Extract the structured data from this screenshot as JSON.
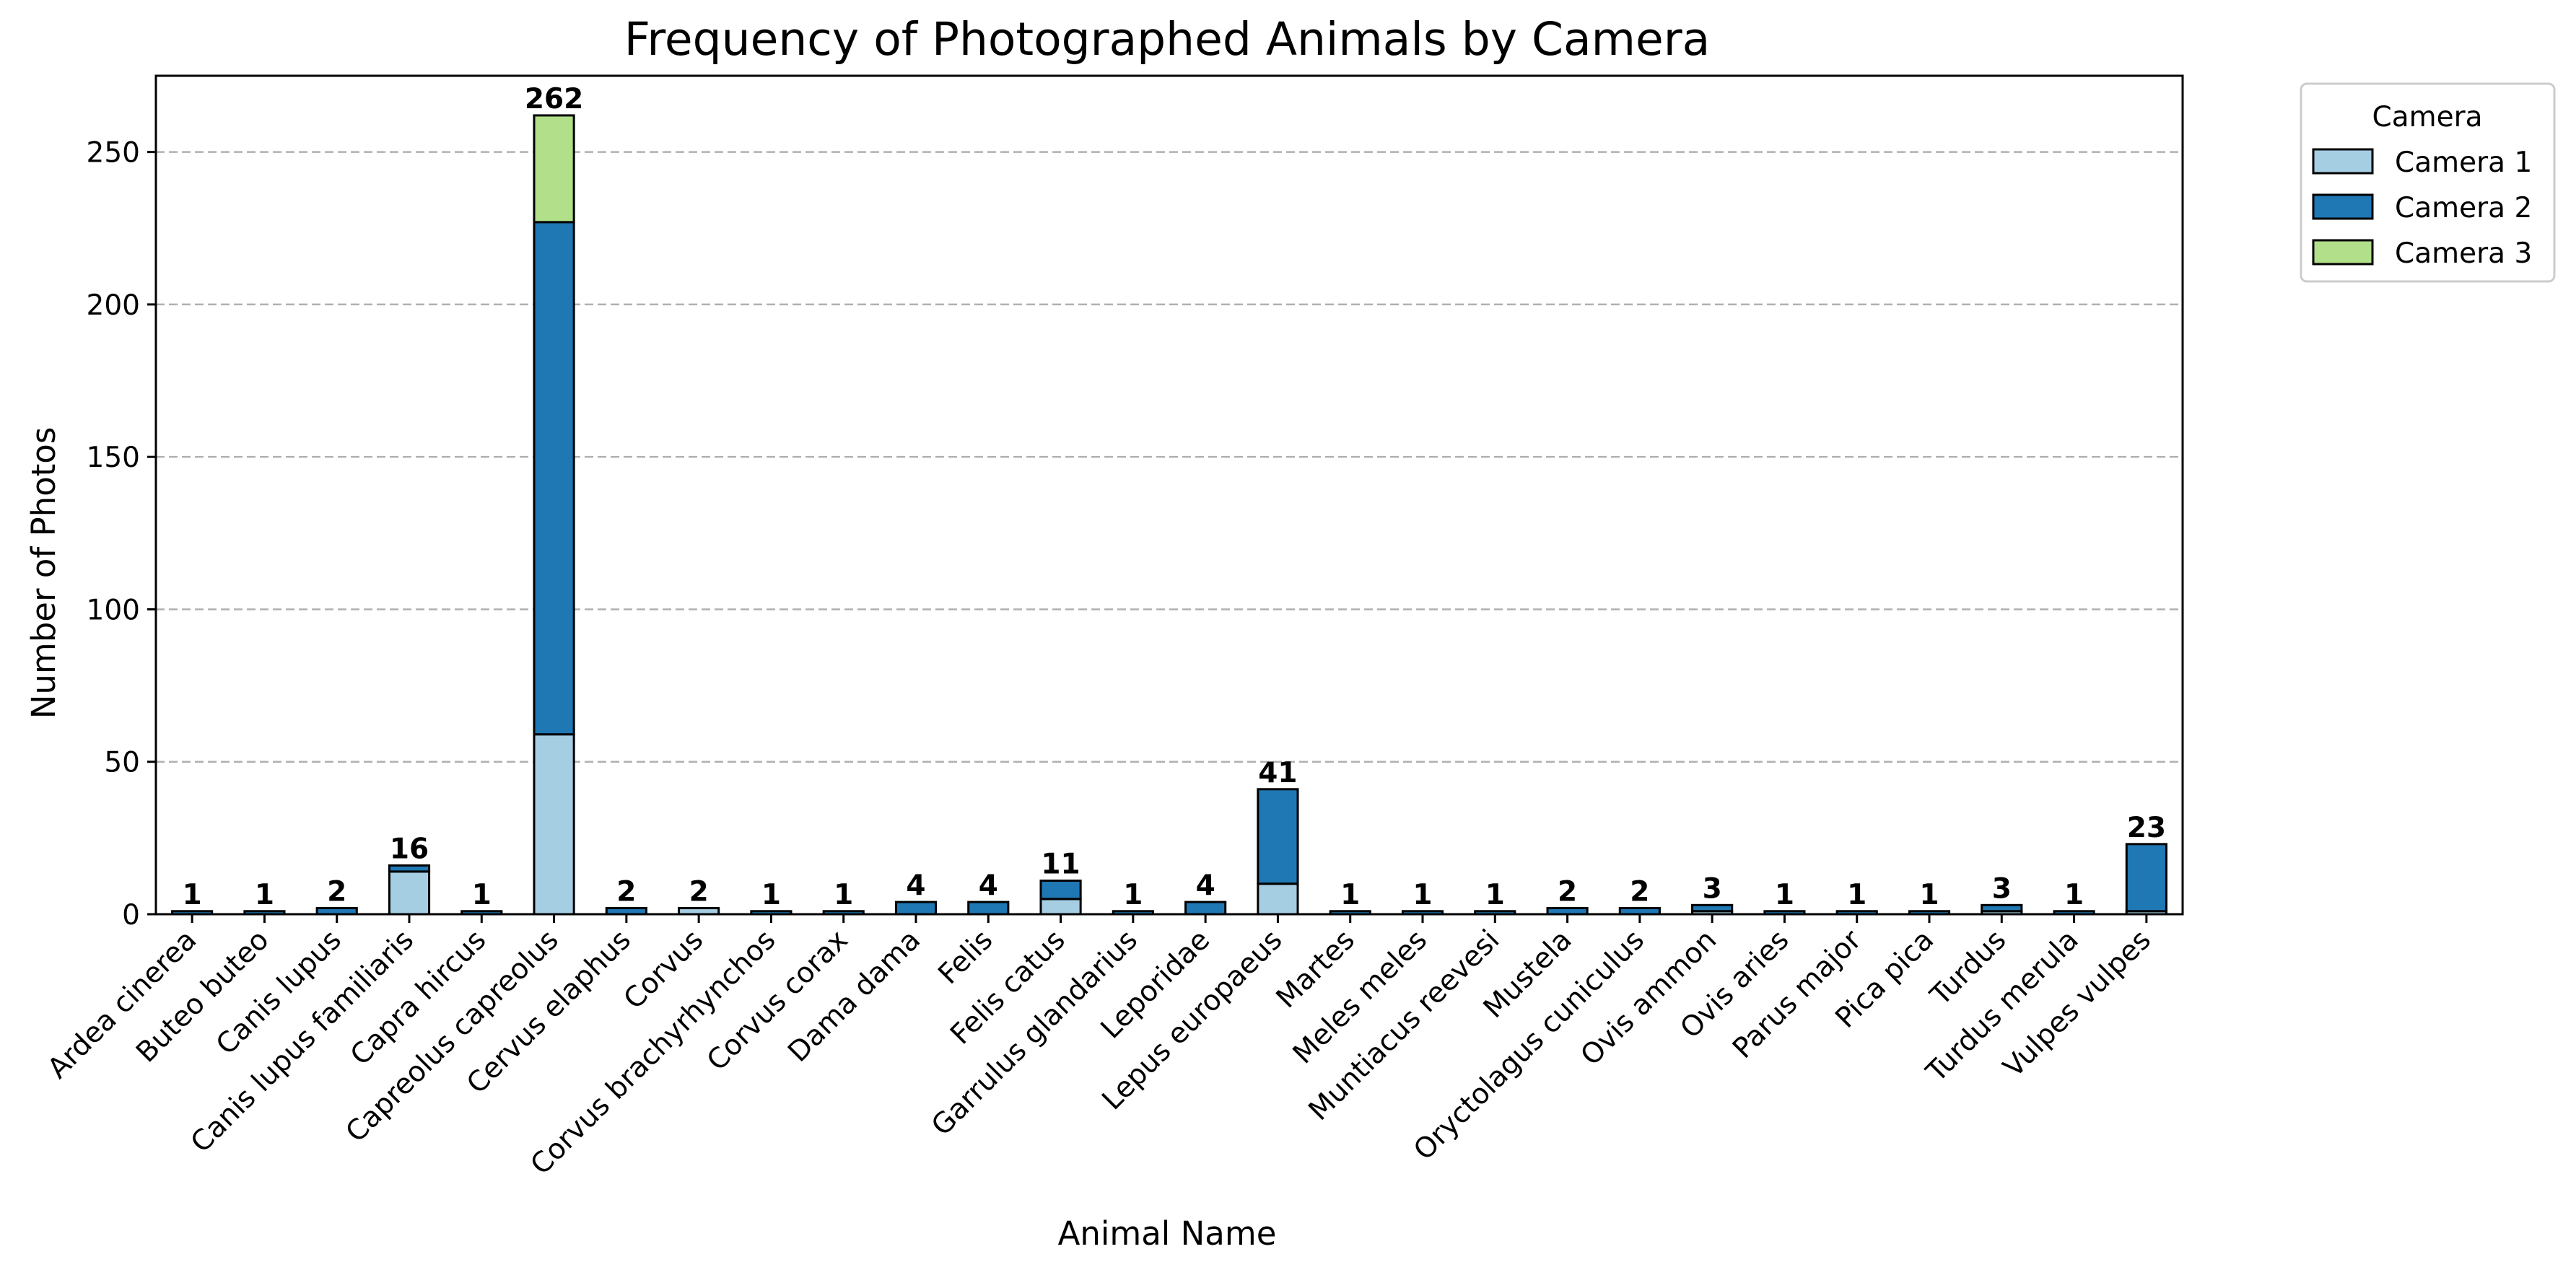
{
  "chart_data": {
    "type": "bar",
    "stacked": true,
    "title": "Frequency of Photographed Animals by Camera",
    "xlabel": "Animal Name",
    "ylabel": "Number of Photos",
    "ylim": [
      0,
      275
    ],
    "yticks": [
      0,
      50,
      100,
      150,
      200,
      250
    ],
    "grid": "horizontal dashed",
    "legend": {
      "title": "Camera",
      "placement": "outside top-right"
    },
    "categories": [
      "Ardea cinerea",
      "Buteo buteo",
      "Canis lupus",
      "Canis lupus familiaris",
      "Capra hircus",
      "Capreolus capreolus",
      "Cervus elaphus",
      "Corvus",
      "Corvus brachyrhynchos",
      "Corvus corax",
      "Dama dama",
      "Felis",
      "Felis catus",
      "Garrulus glandarius",
      "Leporidae",
      "Lepus europaeus",
      "Martes",
      "Meles meles",
      "Muntiacus reevesi",
      "Mustela",
      "Oryctolagus cuniculus",
      "Ovis ammon",
      "Ovis aries",
      "Parus major",
      "Pica pica",
      "Turdus",
      "Turdus merula",
      "Vulpes vulpes"
    ],
    "series": [
      {
        "name": "Camera 1",
        "color": "#a6cee3",
        "values": [
          0,
          0,
          0,
          14,
          0,
          59,
          0,
          2,
          0,
          0,
          0,
          0,
          5,
          0,
          0,
          10,
          0,
          0,
          0,
          0,
          0,
          1,
          0,
          0,
          0,
          1,
          0,
          1
        ]
      },
      {
        "name": "Camera 2",
        "color": "#1f78b4",
        "values": [
          1,
          1,
          2,
          2,
          1,
          168,
          2,
          0,
          1,
          1,
          4,
          4,
          6,
          1,
          4,
          31,
          1,
          1,
          1,
          2,
          2,
          2,
          1,
          1,
          1,
          2,
          1,
          22
        ]
      },
      {
        "name": "Camera 3",
        "color": "#b2df8a",
        "values": [
          0,
          0,
          0,
          0,
          0,
          35,
          0,
          0,
          0,
          0,
          0,
          0,
          0,
          0,
          0,
          0,
          0,
          0,
          0,
          0,
          0,
          0,
          0,
          0,
          0,
          0,
          0,
          0
        ]
      }
    ],
    "totals": [
      1,
      1,
      2,
      16,
      1,
      262,
      2,
      2,
      1,
      1,
      4,
      4,
      11,
      1,
      4,
      41,
      1,
      1,
      1,
      2,
      2,
      3,
      1,
      1,
      1,
      3,
      1,
      23
    ]
  }
}
